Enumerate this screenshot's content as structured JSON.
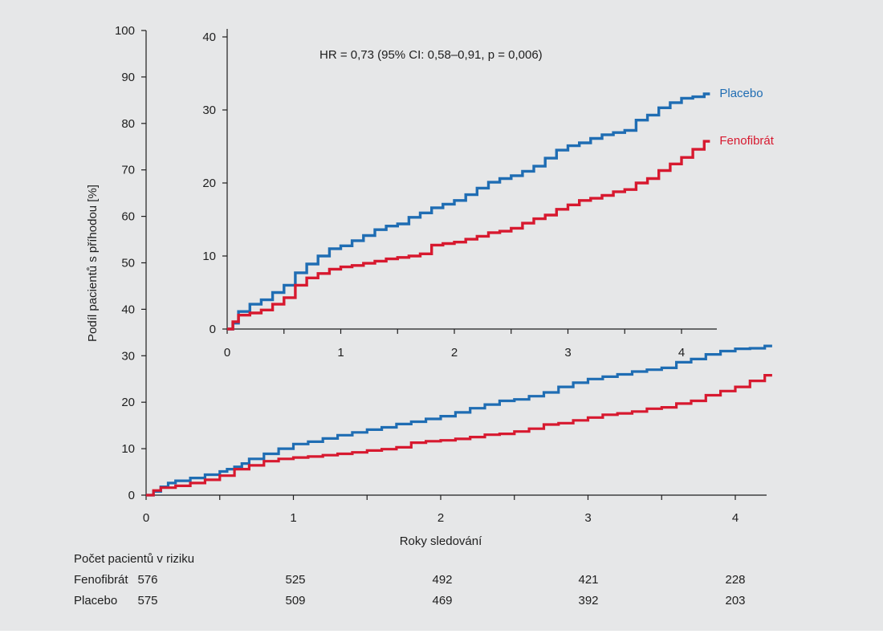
{
  "chart_data": [
    {
      "type": "line",
      "title": "",
      "xlabel": "Roky sledování",
      "ylabel": "Podíl pacientů s příhodou [%]",
      "xlim": [
        0,
        4.25
      ],
      "ylim": [
        0,
        100
      ],
      "x_ticks": [
        "0",
        "1",
        "2",
        "3",
        "4"
      ],
      "y_ticks": [
        "0",
        "10",
        "20",
        "30",
        "40",
        "50",
        "60",
        "70",
        "80",
        "90",
        "100"
      ],
      "series": [
        {
          "name": "Placebo",
          "color": "#1f6db3",
          "points": [
            [
              0,
              0
            ],
            [
              0.05,
              0.8
            ],
            [
              0.1,
              1.8
            ],
            [
              0.15,
              2.6
            ],
            [
              0.2,
              3.1
            ],
            [
              0.3,
              3.7
            ],
            [
              0.4,
              4.4
            ],
            [
              0.5,
              5.1
            ],
            [
              0.55,
              5.6
            ],
            [
              0.6,
              6.1
            ],
            [
              0.65,
              6.8
            ],
            [
              0.7,
              7.8
            ],
            [
              0.8,
              8.9
            ],
            [
              0.9,
              10.0
            ],
            [
              1.0,
              11.0
            ],
            [
              1.1,
              11.5
            ],
            [
              1.2,
              12.2
            ],
            [
              1.3,
              12.9
            ],
            [
              1.4,
              13.5
            ],
            [
              1.5,
              14.1
            ],
            [
              1.6,
              14.6
            ],
            [
              1.7,
              15.3
            ],
            [
              1.8,
              15.8
            ],
            [
              1.9,
              16.4
            ],
            [
              2.0,
              17.0
            ],
            [
              2.1,
              17.8
            ],
            [
              2.2,
              18.7
            ],
            [
              2.3,
              19.5
            ],
            [
              2.4,
              20.3
            ],
            [
              2.5,
              20.6
            ],
            [
              2.6,
              21.3
            ],
            [
              2.7,
              22.1
            ],
            [
              2.8,
              23.3
            ],
            [
              2.9,
              24.2
            ],
            [
              3.0,
              25.0
            ],
            [
              3.1,
              25.5
            ],
            [
              3.2,
              26.0
            ],
            [
              3.3,
              26.6
            ],
            [
              3.4,
              27.0
            ],
            [
              3.5,
              27.4
            ],
            [
              3.6,
              28.6
            ],
            [
              3.7,
              29.3
            ],
            [
              3.8,
              30.3
            ],
            [
              3.9,
              31.0
            ],
            [
              4.0,
              31.5
            ],
            [
              4.1,
              31.6
            ],
            [
              4.2,
              32.1
            ],
            [
              4.25,
              32.1
            ]
          ]
        },
        {
          "name": "Fenofibrát",
          "color": "#d7192f",
          "points": [
            [
              0,
              0
            ],
            [
              0.05,
              1.0
            ],
            [
              0.1,
              1.6
            ],
            [
              0.2,
              2.0
            ],
            [
              0.3,
              2.6
            ],
            [
              0.4,
              3.3
            ],
            [
              0.5,
              4.2
            ],
            [
              0.6,
              5.6
            ],
            [
              0.7,
              6.4
            ],
            [
              0.8,
              7.3
            ],
            [
              0.9,
              7.8
            ],
            [
              1.0,
              8.1
            ],
            [
              1.1,
              8.3
            ],
            [
              1.2,
              8.6
            ],
            [
              1.3,
              8.9
            ],
            [
              1.4,
              9.2
            ],
            [
              1.5,
              9.6
            ],
            [
              1.6,
              9.9
            ],
            [
              1.7,
              10.3
            ],
            [
              1.8,
              11.3
            ],
            [
              1.9,
              11.6
            ],
            [
              2.0,
              11.8
            ],
            [
              2.1,
              12.1
            ],
            [
              2.2,
              12.5
            ],
            [
              2.3,
              13.0
            ],
            [
              2.4,
              13.2
            ],
            [
              2.5,
              13.7
            ],
            [
              2.6,
              14.3
            ],
            [
              2.7,
              15.2
            ],
            [
              2.8,
              15.5
            ],
            [
              2.9,
              16.1
            ],
            [
              3.0,
              16.7
            ],
            [
              3.1,
              17.3
            ],
            [
              3.2,
              17.6
            ],
            [
              3.3,
              18.0
            ],
            [
              3.4,
              18.6
            ],
            [
              3.5,
              18.9
            ],
            [
              3.6,
              19.7
            ],
            [
              3.7,
              20.3
            ],
            [
              3.8,
              21.5
            ],
            [
              3.9,
              22.4
            ],
            [
              4.0,
              23.3
            ],
            [
              4.1,
              24.6
            ],
            [
              4.2,
              25.8
            ],
            [
              4.25,
              25.8
            ]
          ]
        }
      ]
    },
    {
      "type": "line",
      "title": "",
      "annotation": "HR = 0,73 (95% CI: 0,58–0,91, p = 0,006)",
      "xlim": [
        0,
        4.3
      ],
      "ylim": [
        0,
        40
      ],
      "x_ticks": [
        "0",
        "1",
        "2",
        "3",
        "4"
      ],
      "y_ticks": [
        "0",
        "10",
        "20",
        "30",
        "40"
      ],
      "series": [
        {
          "name": "Placebo",
          "label": "Placebo",
          "color": "#1f6db3",
          "points": [
            [
              0,
              0
            ],
            [
              0.05,
              0.8
            ],
            [
              0.1,
              2.4
            ],
            [
              0.2,
              3.4
            ],
            [
              0.3,
              4.0
            ],
            [
              0.4,
              5.0
            ],
            [
              0.5,
              6.0
            ],
            [
              0.6,
              7.7
            ],
            [
              0.7,
              8.9
            ],
            [
              0.8,
              10.0
            ],
            [
              0.9,
              11.0
            ],
            [
              1.0,
              11.4
            ],
            [
              1.1,
              12.1
            ],
            [
              1.2,
              12.8
            ],
            [
              1.3,
              13.6
            ],
            [
              1.4,
              14.1
            ],
            [
              1.5,
              14.4
            ],
            [
              1.6,
              15.3
            ],
            [
              1.7,
              15.9
            ],
            [
              1.8,
              16.6
            ],
            [
              1.9,
              17.1
            ],
            [
              2.0,
              17.6
            ],
            [
              2.1,
              18.4
            ],
            [
              2.2,
              19.3
            ],
            [
              2.3,
              20.1
            ],
            [
              2.4,
              20.6
            ],
            [
              2.5,
              21.0
            ],
            [
              2.6,
              21.6
            ],
            [
              2.7,
              22.3
            ],
            [
              2.8,
              23.4
            ],
            [
              2.9,
              24.5
            ],
            [
              3.0,
              25.1
            ],
            [
              3.1,
              25.5
            ],
            [
              3.2,
              26.1
            ],
            [
              3.3,
              26.6
            ],
            [
              3.4,
              26.9
            ],
            [
              3.5,
              27.2
            ],
            [
              3.6,
              28.6
            ],
            [
              3.7,
              29.3
            ],
            [
              3.8,
              30.3
            ],
            [
              3.9,
              31.0
            ],
            [
              4.0,
              31.6
            ],
            [
              4.1,
              31.8
            ],
            [
              4.2,
              32.2
            ],
            [
              4.25,
              32.2
            ]
          ]
        },
        {
          "name": "Fenofibrát",
          "label": "Fenofibrát",
          "color": "#d7192f",
          "points": [
            [
              0,
              0
            ],
            [
              0.05,
              1.0
            ],
            [
              0.1,
              1.9
            ],
            [
              0.2,
              2.2
            ],
            [
              0.3,
              2.6
            ],
            [
              0.4,
              3.4
            ],
            [
              0.5,
              4.3
            ],
            [
              0.6,
              6.0
            ],
            [
              0.7,
              7.0
            ],
            [
              0.8,
              7.6
            ],
            [
              0.9,
              8.2
            ],
            [
              1.0,
              8.5
            ],
            [
              1.1,
              8.7
            ],
            [
              1.2,
              9.0
            ],
            [
              1.3,
              9.3
            ],
            [
              1.4,
              9.6
            ],
            [
              1.5,
              9.8
            ],
            [
              1.6,
              10.0
            ],
            [
              1.7,
              10.3
            ],
            [
              1.8,
              11.5
            ],
            [
              1.9,
              11.7
            ],
            [
              2.0,
              11.9
            ],
            [
              2.1,
              12.3
            ],
            [
              2.2,
              12.7
            ],
            [
              2.3,
              13.2
            ],
            [
              2.4,
              13.4
            ],
            [
              2.5,
              13.8
            ],
            [
              2.6,
              14.5
            ],
            [
              2.7,
              15.1
            ],
            [
              2.8,
              15.6
            ],
            [
              2.9,
              16.4
            ],
            [
              3.0,
              17.0
            ],
            [
              3.1,
              17.6
            ],
            [
              3.2,
              17.9
            ],
            [
              3.3,
              18.3
            ],
            [
              3.4,
              18.8
            ],
            [
              3.5,
              19.1
            ],
            [
              3.6,
              20.0
            ],
            [
              3.7,
              20.6
            ],
            [
              3.8,
              21.7
            ],
            [
              3.9,
              22.6
            ],
            [
              4.0,
              23.5
            ],
            [
              4.1,
              24.6
            ],
            [
              4.2,
              25.7
            ],
            [
              4.25,
              25.7
            ]
          ]
        }
      ]
    }
  ],
  "risk_table": {
    "title": "Počet pacientů v riziku",
    "rows": [
      {
        "name": "Fenofibrát",
        "values": [
          "576",
          "525",
          "492",
          "421",
          "228"
        ]
      },
      {
        "name": "Placebo",
        "values": [
          "575",
          "509",
          "469",
          "392",
          "203"
        ]
      }
    ]
  }
}
